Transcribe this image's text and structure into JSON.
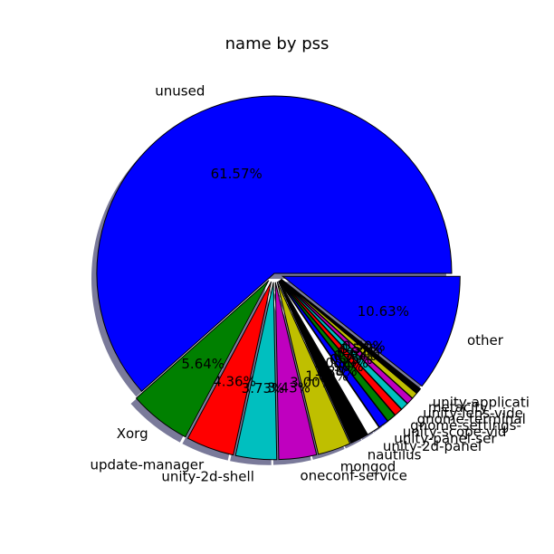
{
  "chart_data": {
    "type": "pie",
    "title": "name by pss",
    "slices": [
      {
        "label": "unused",
        "value": 61.57,
        "pct_text": "61.57%",
        "color": "#0000ff",
        "explode": 0
      },
      {
        "label": "Xorg",
        "value": 5.64,
        "pct_text": "5.64%",
        "color": "#008000",
        "explode": 1
      },
      {
        "label": "update-manager",
        "value": 4.36,
        "pct_text": "4.36%",
        "color": "#ff0000",
        "explode": 1
      },
      {
        "label": "unity-2d-shell",
        "value": 3.73,
        "pct_text": "3.73%",
        "color": "#00bfbf",
        "explode": 1
      },
      {
        "label": "oneconf-service",
        "value": 3.43,
        "pct_text": "3.43%",
        "color": "#bf00bf",
        "explode": 1
      },
      {
        "label": "mongod",
        "value": 3.0,
        "pct_text": "3.00%",
        "color": "#bfbf00",
        "explode": 1
      },
      {
        "label": "nautilus",
        "value": 1.6,
        "pct_text": "1.60%",
        "color": "#000000",
        "explode": 1
      },
      {
        "label": "unity-2d-panel",
        "value": 1.2,
        "pct_text": "1.20%",
        "color": "#ffffff",
        "explode": 1
      },
      {
        "label": "unity-panel-ser",
        "value": 0.9,
        "pct_text": "0.90%",
        "color": "#0000ff",
        "explode": 1
      },
      {
        "label": "unity-scope-vid",
        "value": 0.8,
        "pct_text": "0.80%",
        "color": "#008000",
        "explode": 1
      },
      {
        "label": "gnome-settings-",
        "value": 0.75,
        "pct_text": "0.75%",
        "color": "#ff0000",
        "explode": 1
      },
      {
        "label": "gnome-terminal",
        "value": 0.7,
        "pct_text": "0.70%",
        "color": "#00bfbf",
        "explode": 1
      },
      {
        "label": "unity-lens-vide",
        "value": 0.62,
        "pct_text": "0.62%",
        "color": "#bf00bf",
        "explode": 1
      },
      {
        "label": "metacity",
        "value": 0.57,
        "pct_text": "0.57%",
        "color": "#bfbf00",
        "explode": 1
      },
      {
        "label": "unity-applicati",
        "value": 0.5,
        "pct_text": "0.50%",
        "color": "#000000",
        "explode": 1
      },
      {
        "label": "other",
        "value": 10.63,
        "pct_text": "10.63%",
        "color": "#0000ff",
        "explode": 1
      }
    ]
  }
}
